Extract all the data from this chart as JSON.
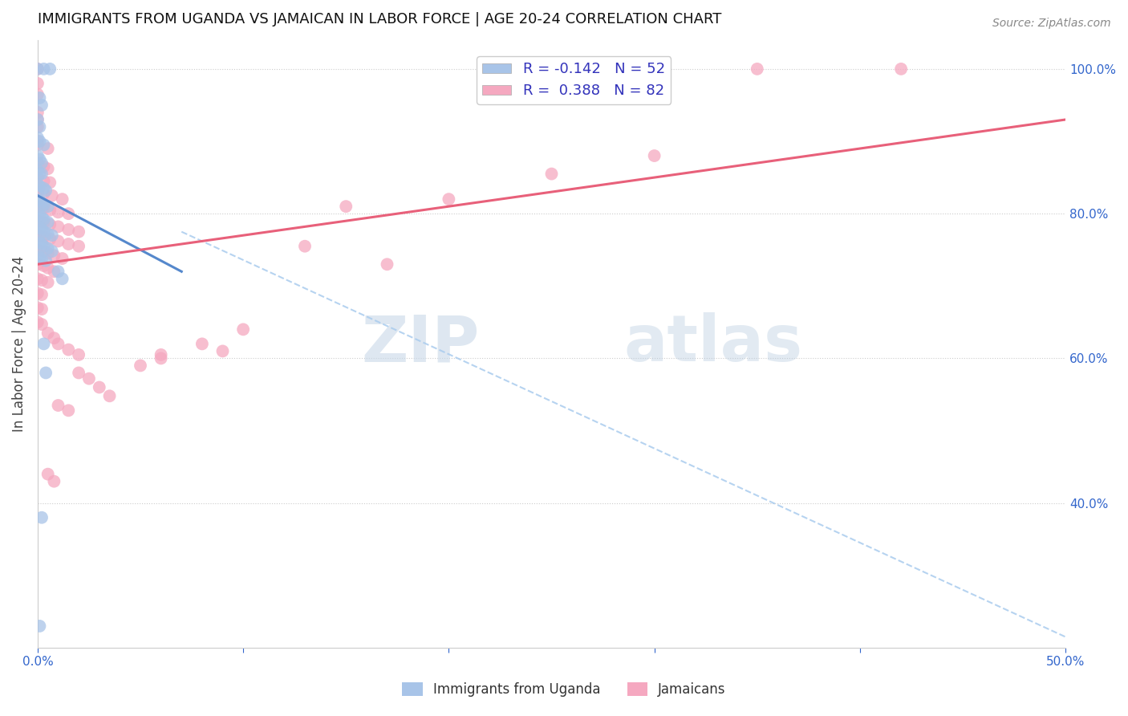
{
  "title": "IMMIGRANTS FROM UGANDA VS JAMAICAN IN LABOR FORCE | AGE 20-24 CORRELATION CHART",
  "source": "Source: ZipAtlas.com",
  "ylabel": "In Labor Force | Age 20-24",
  "xlim": [
    0.0,
    0.5
  ],
  "ylim": [
    0.2,
    1.04
  ],
  "yticks_right": [
    0.4,
    0.6,
    0.8,
    1.0
  ],
  "ytick_right_labels": [
    "40.0%",
    "60.0%",
    "80.0%",
    "100.0%"
  ],
  "legend_r_uganda": "-0.142",
  "legend_n_uganda": "52",
  "legend_r_jamaican": "0.388",
  "legend_n_jamaican": "82",
  "uganda_color": "#a8c4e8",
  "jamaican_color": "#f5a8c0",
  "trendline_uganda_color": "#5588cc",
  "trendline_jamaican_color": "#e8607a",
  "dashed_color": "#aaccee",
  "watermark_zip": "ZIP",
  "watermark_atlas": "atlas",
  "uganda_trendline": [
    [
      0.0,
      0.825
    ],
    [
      0.07,
      0.72
    ]
  ],
  "jamaican_trendline": [
    [
      0.0,
      0.73
    ],
    [
      0.5,
      0.93
    ]
  ],
  "dashed_line": [
    [
      0.07,
      0.775
    ],
    [
      0.5,
      0.215
    ]
  ],
  "uganda_points": [
    [
      0.0,
      1.0
    ],
    [
      0.003,
      1.0
    ],
    [
      0.006,
      1.0
    ],
    [
      0.001,
      0.96
    ],
    [
      0.002,
      0.95
    ],
    [
      0.0,
      0.93
    ],
    [
      0.001,
      0.92
    ],
    [
      0.0,
      0.905
    ],
    [
      0.001,
      0.9
    ],
    [
      0.003,
      0.895
    ],
    [
      0.0,
      0.88
    ],
    [
      0.001,
      0.875
    ],
    [
      0.002,
      0.87
    ],
    [
      0.0,
      0.86
    ],
    [
      0.001,
      0.855
    ],
    [
      0.002,
      0.855
    ],
    [
      0.0,
      0.84
    ],
    [
      0.001,
      0.838
    ],
    [
      0.003,
      0.835
    ],
    [
      0.004,
      0.832
    ],
    [
      0.0,
      0.82
    ],
    [
      0.001,
      0.818
    ],
    [
      0.002,
      0.815
    ],
    [
      0.003,
      0.812
    ],
    [
      0.005,
      0.81
    ],
    [
      0.0,
      0.8
    ],
    [
      0.001,
      0.798
    ],
    [
      0.002,
      0.795
    ],
    [
      0.003,
      0.792
    ],
    [
      0.005,
      0.788
    ],
    [
      0.0,
      0.782
    ],
    [
      0.001,
      0.78
    ],
    [
      0.002,
      0.778
    ],
    [
      0.003,
      0.775
    ],
    [
      0.005,
      0.772
    ],
    [
      0.007,
      0.77
    ],
    [
      0.0,
      0.762
    ],
    [
      0.001,
      0.76
    ],
    [
      0.002,
      0.758
    ],
    [
      0.003,
      0.755
    ],
    [
      0.005,
      0.752
    ],
    [
      0.007,
      0.748
    ],
    [
      0.0,
      0.742
    ],
    [
      0.001,
      0.74
    ],
    [
      0.002,
      0.738
    ],
    [
      0.004,
      0.735
    ],
    [
      0.01,
      0.72
    ],
    [
      0.012,
      0.71
    ],
    [
      0.003,
      0.62
    ],
    [
      0.004,
      0.58
    ],
    [
      0.002,
      0.38
    ],
    [
      0.001,
      0.23
    ]
  ],
  "jamaican_points": [
    [
      0.0,
      1.0
    ],
    [
      0.27,
      1.0
    ],
    [
      0.35,
      1.0
    ],
    [
      0.42,
      1.0
    ],
    [
      0.0,
      0.98
    ],
    [
      0.0,
      0.965
    ],
    [
      0.0,
      0.94
    ],
    [
      0.0,
      0.93
    ],
    [
      0.0,
      0.92
    ],
    [
      0.0,
      0.9
    ],
    [
      0.0,
      0.895
    ],
    [
      0.005,
      0.89
    ],
    [
      0.0,
      0.87
    ],
    [
      0.003,
      0.865
    ],
    [
      0.005,
      0.862
    ],
    [
      0.0,
      0.85
    ],
    [
      0.003,
      0.845
    ],
    [
      0.006,
      0.843
    ],
    [
      0.0,
      0.83
    ],
    [
      0.003,
      0.828
    ],
    [
      0.007,
      0.825
    ],
    [
      0.012,
      0.82
    ],
    [
      0.0,
      0.81
    ],
    [
      0.003,
      0.808
    ],
    [
      0.006,
      0.805
    ],
    [
      0.01,
      0.802
    ],
    [
      0.015,
      0.8
    ],
    [
      0.0,
      0.79
    ],
    [
      0.003,
      0.788
    ],
    [
      0.006,
      0.785
    ],
    [
      0.01,
      0.782
    ],
    [
      0.015,
      0.778
    ],
    [
      0.02,
      0.775
    ],
    [
      0.0,
      0.77
    ],
    [
      0.003,
      0.768
    ],
    [
      0.006,
      0.765
    ],
    [
      0.01,
      0.762
    ],
    [
      0.015,
      0.758
    ],
    [
      0.02,
      0.755
    ],
    [
      0.0,
      0.75
    ],
    [
      0.003,
      0.748
    ],
    [
      0.005,
      0.745
    ],
    [
      0.008,
      0.742
    ],
    [
      0.012,
      0.738
    ],
    [
      0.0,
      0.73
    ],
    [
      0.003,
      0.728
    ],
    [
      0.005,
      0.725
    ],
    [
      0.008,
      0.72
    ],
    [
      0.0,
      0.71
    ],
    [
      0.002,
      0.708
    ],
    [
      0.005,
      0.705
    ],
    [
      0.0,
      0.69
    ],
    [
      0.002,
      0.688
    ],
    [
      0.0,
      0.67
    ],
    [
      0.002,
      0.668
    ],
    [
      0.0,
      0.65
    ],
    [
      0.002,
      0.647
    ],
    [
      0.005,
      0.635
    ],
    [
      0.008,
      0.628
    ],
    [
      0.01,
      0.62
    ],
    [
      0.015,
      0.612
    ],
    [
      0.02,
      0.605
    ],
    [
      0.02,
      0.58
    ],
    [
      0.025,
      0.572
    ],
    [
      0.03,
      0.56
    ],
    [
      0.035,
      0.548
    ],
    [
      0.01,
      0.535
    ],
    [
      0.015,
      0.528
    ],
    [
      0.05,
      0.59
    ],
    [
      0.06,
      0.605
    ],
    [
      0.08,
      0.62
    ],
    [
      0.1,
      0.64
    ],
    [
      0.005,
      0.44
    ],
    [
      0.008,
      0.43
    ],
    [
      0.06,
      0.6
    ],
    [
      0.09,
      0.61
    ],
    [
      0.2,
      0.82
    ],
    [
      0.15,
      0.81
    ],
    [
      0.17,
      0.73
    ],
    [
      0.13,
      0.755
    ],
    [
      0.3,
      0.88
    ],
    [
      0.25,
      0.855
    ]
  ]
}
